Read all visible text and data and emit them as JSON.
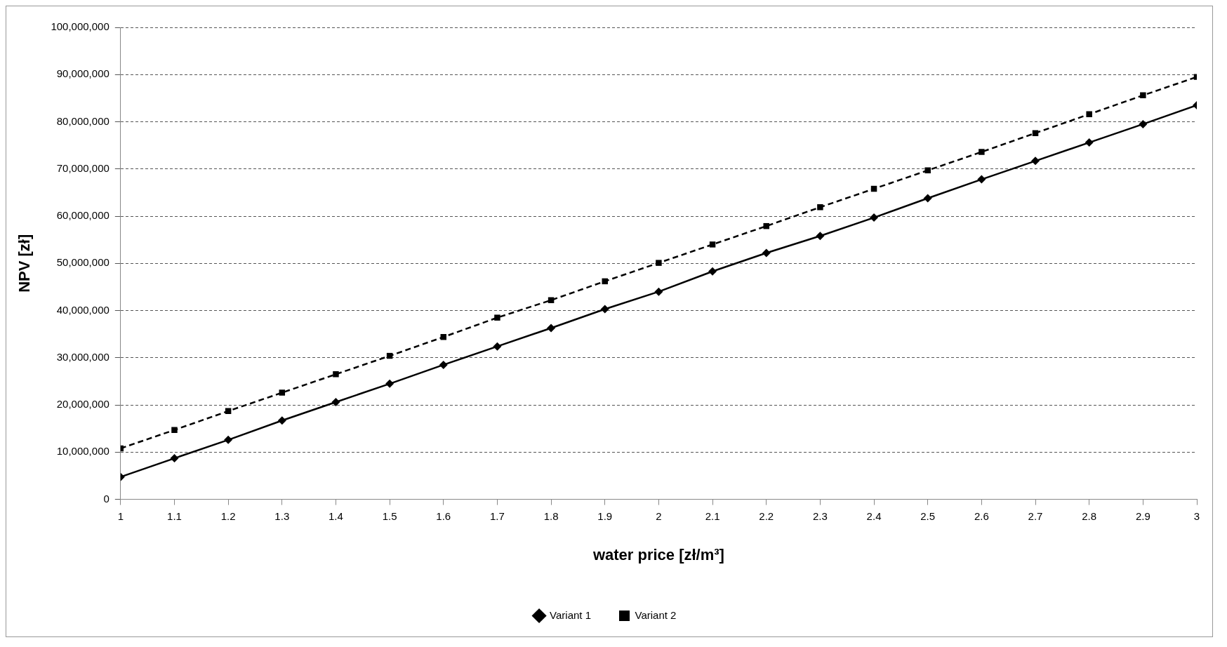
{
  "chart_data": {
    "type": "line",
    "xlabel": "water price [zł/m³]",
    "ylabel": "NPV [zł]",
    "x": [
      1,
      1.1,
      1.2,
      1.3,
      1.4,
      1.5,
      1.6,
      1.7,
      1.8,
      1.9,
      2,
      2.1,
      2.2,
      2.3,
      2.4,
      2.5,
      2.6,
      2.7,
      2.8,
      2.9,
      3
    ],
    "series": [
      {
        "name": "Variant 1",
        "color": "#000000",
        "marker": "diamond",
        "line_style": "solid",
        "values": [
          4750000,
          8700000,
          12600000,
          16700000,
          20600000,
          24500000,
          28500000,
          32400000,
          36300000,
          40300000,
          44000000,
          48300000,
          52200000,
          55800000,
          59700000,
          63800000,
          67800000,
          71700000,
          75600000,
          79500000,
          83500000
        ]
      },
      {
        "name": "Variant 2",
        "color": "#000000",
        "marker": "square",
        "line_style": "dashed",
        "values": [
          10800000,
          14700000,
          18700000,
          22600000,
          26500000,
          30400000,
          34400000,
          38500000,
          42200000,
          46200000,
          50100000,
          54000000,
          57900000,
          61900000,
          65800000,
          69700000,
          73600000,
          77600000,
          81600000,
          85600000,
          89500000
        ]
      }
    ],
    "xlim": [
      1,
      3
    ],
    "xticks": [
      1,
      1.1,
      1.2,
      1.3,
      1.4,
      1.5,
      1.6,
      1.7,
      1.8,
      1.9,
      2,
      2.1,
      2.2,
      2.3,
      2.4,
      2.5,
      2.6,
      2.7,
      2.8,
      2.9,
      3
    ],
    "ylim": [
      0,
      100000000
    ],
    "yticks": [
      0,
      {
        "value": 10000000,
        "label": "10,000,000"
      },
      {
        "value": 20000000,
        "label": "20,000,000"
      },
      {
        "value": 30000000,
        "label": "30,000,000"
      },
      {
        "value": 40000000,
        "label": "40,000,000"
      },
      {
        "value": 50000000,
        "label": "50,000,000"
      },
      {
        "value": 60000000,
        "label": "60,000,000"
      },
      {
        "value": 70000000,
        "label": "70,000,000"
      },
      {
        "value": 80000000,
        "label": "80,000,000"
      },
      {
        "value": 90000000,
        "label": "90,000,000"
      },
      {
        "value": 100000000,
        "label": "100,000,000"
      }
    ],
    "grid": "y",
    "legend": "bottom"
  }
}
